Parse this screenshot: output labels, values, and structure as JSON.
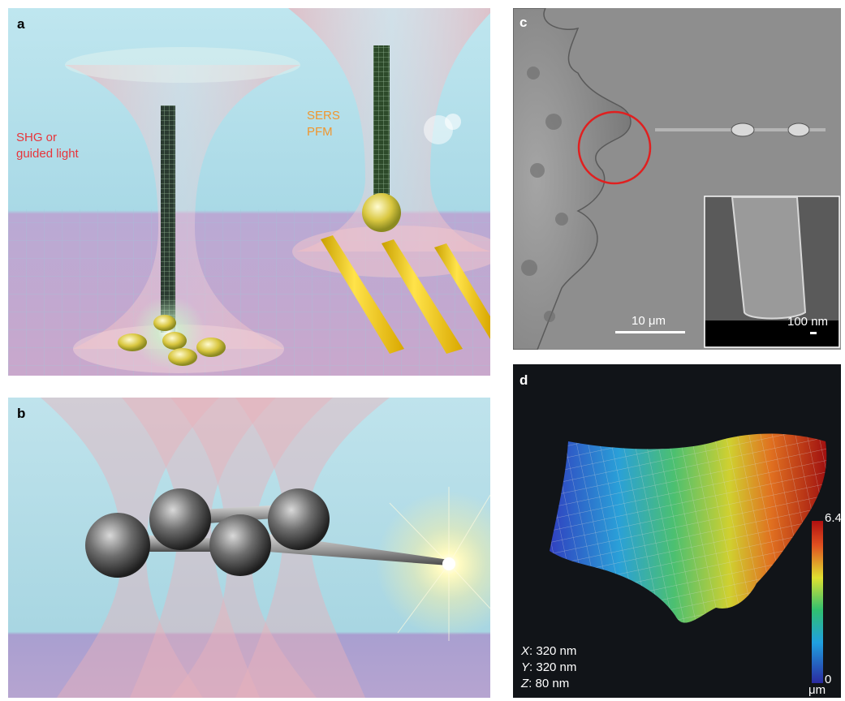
{
  "figure": {
    "panel_a": {
      "label": "a",
      "annotation_left_line1": "SHG or",
      "annotation_left_line2": "guided light",
      "annotation_right_line1": "SERS",
      "annotation_right_line2": "PFM",
      "colors": {
        "left_text": "#e8343a",
        "right_text": "#f0962e"
      }
    },
    "panel_b": {
      "label": "b"
    },
    "panel_c": {
      "label": "c",
      "scalebar_main": "10 μm",
      "scalebar_inset": "100 nm",
      "colors": {
        "circle": "#e02020"
      }
    },
    "panel_d": {
      "label": "d",
      "colorbar_max": "6.4",
      "colorbar_min": "0",
      "colorbar_unit": "μm",
      "dims": [
        {
          "axis": "X",
          "value": ": 320 nm"
        },
        {
          "axis": "Y",
          "value": ": 320 nm"
        },
        {
          "axis": "Z",
          "value": ": 80 nm"
        }
      ]
    }
  }
}
